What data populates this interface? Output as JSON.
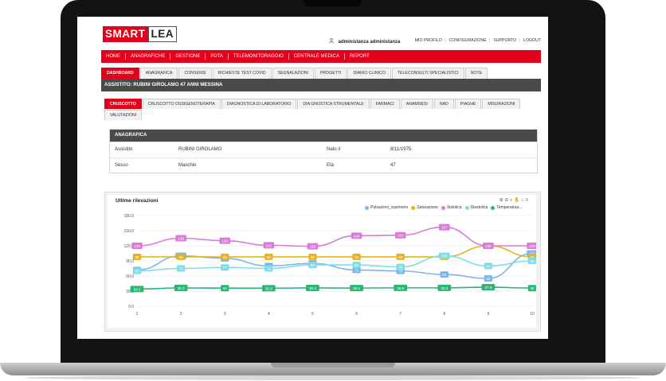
{
  "app": {
    "logo_part1": "SMART",
    "logo_part2": "LEA",
    "user_name": "administanza administanza",
    "top_links": [
      "MIO PROFILO",
      "CONFIGURAZIONE",
      "SUPPORTO",
      "LOGOUT"
    ]
  },
  "main_nav": [
    "HOME",
    "ANAGRAFICHE",
    "GESTIONE",
    "PDTA",
    "TELEMONITORAGGIO",
    "CENTRALE MEDICA",
    "REPORT"
  ],
  "sub_tabs": {
    "active": 0,
    "items": [
      "DASHBOARD",
      "ANAGRAFICA",
      "CONSENSI",
      "RICHIESTE TEST COVID",
      "SEGNALAZIONI",
      "PROGETTI",
      "DIARIO CLINICO",
      "TELECONSULTI SPECIALISTICI",
      "NOTE"
    ]
  },
  "patient": {
    "banner": "ASSISTITO: RUBINI GIROLAMO 47 ANNI MESSINA"
  },
  "inner_tabs": {
    "active": 0,
    "items": [
      "CRUSCOTTO",
      "CRUSCOTTO OSSIGENOTERAPIA",
      "DIAGNOSTICA DI LABORATORIO",
      "DIA GNOSTICA STRUMENTALE",
      "FARMACI",
      "ANAMNESI",
      "NAD",
      "PIAGHE",
      "MISURAZIONI",
      "VALUTAZIONI"
    ]
  },
  "anagrafica": {
    "title": "ANAGRAFICA",
    "rows": [
      {
        "label1": "Assistito",
        "value1": "RUBINI GIROLAMO",
        "label2": "Nato il",
        "value2": "8/11/1975"
      },
      {
        "label1": "Sesso",
        "value1": "Maschio",
        "label2": "Età",
        "value2": "47"
      }
    ]
  },
  "colors": {
    "brand_red": "#e3001b",
    "dark_bar": "#4a4a4a"
  },
  "chart_data": {
    "type": "line",
    "title": "Ultime rilevazioni",
    "x": [
      1,
      2,
      3,
      4,
      5,
      6,
      7,
      8,
      9,
      10
    ],
    "ylim": [
      0,
      180
    ],
    "yticks": [
      "0.0",
      "30.0",
      "60.0",
      "90.0",
      "120.0",
      "150.0",
      "180.0"
    ],
    "grid": true,
    "legend_position": "top-right",
    "series": [
      {
        "name": "Pulsazioni_ossimetro",
        "color": "#7cb5ec",
        "values": [
          72,
          100,
          95,
          80,
          85,
          72,
          70,
          63,
          55,
          105
        ],
        "labels": [
          "72",
          "100",
          "95",
          "80",
          "85",
          "72",
          "70",
          "63",
          "55",
          "105"
        ]
      },
      {
        "name": "Saturazione",
        "color": "#e8b21b",
        "values": [
          98,
          98,
          98,
          98,
          98,
          98,
          98,
          98,
          120,
          98
        ],
        "labels": [
          "98",
          "98",
          "98",
          "98",
          "98",
          "98",
          "98",
          "98",
          "120",
          "98"
        ]
      },
      {
        "name": "Sistolica",
        "color": "#d97bd9",
        "values": [
          120,
          135,
          130,
          121,
          119,
          140,
          141,
          157,
          120,
          120
        ],
        "labels": [
          "120",
          "135",
          "130",
          "121",
          "119",
          "140",
          "141",
          "157",
          "120",
          "120"
        ]
      },
      {
        "name": "Diastolica",
        "color": "#7fdde6",
        "values": [
          70,
          75,
          77,
          75,
          82,
          82,
          78,
          100,
          80,
          90
        ],
        "labels": [
          "70",
          "75",
          "77",
          "75",
          "82",
          "82",
          "78",
          "100",
          "80",
          "90"
        ]
      },
      {
        "name": "Temperatura...",
        "color": "#2bb673",
        "values": [
          34.2,
          36.3,
          36,
          35.8,
          36.4,
          36.1,
          36.5,
          36.5,
          37.8,
          36
        ],
        "labels": [
          "34.2",
          "36.3",
          "36",
          "35.8",
          "36.4",
          "36.1",
          "36.5",
          "36.5",
          "37.8",
          "36"
        ]
      }
    ]
  }
}
